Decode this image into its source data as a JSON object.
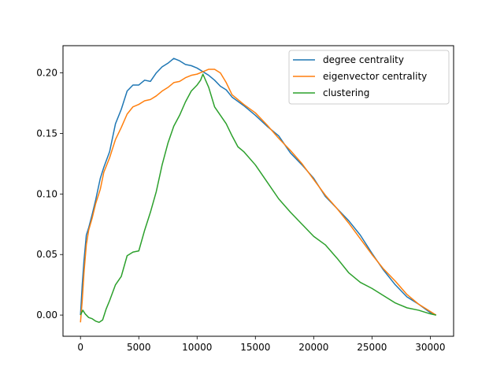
{
  "chart_data": {
    "type": "line",
    "title": "",
    "xlabel": "",
    "ylabel": "",
    "xlim": [
      -1500,
      32000
    ],
    "ylim": [
      -0.0175,
      0.2225
    ],
    "xticks": [
      0,
      5000,
      10000,
      15000,
      20000,
      25000,
      30000
    ],
    "xtick_labels": [
      "0",
      "5000",
      "10000",
      "15000",
      "20000",
      "25000",
      "30000"
    ],
    "yticks": [
      0.0,
      0.05,
      0.1,
      0.15,
      0.2
    ],
    "ytick_labels": [
      "0.00",
      "0.05",
      "0.10",
      "0.15",
      "0.20"
    ],
    "grid": false,
    "legend_position": "top-right",
    "series": [
      {
        "name": "degree centrality",
        "color": "#1f77b4",
        "x": [
          0,
          150,
          300,
          500,
          700,
          1000,
          1300,
          1700,
          2000,
          2500,
          3000,
          3500,
          4000,
          4500,
          5000,
          5500,
          6000,
          6500,
          7000,
          7500,
          8000,
          8500,
          9000,
          9500,
          10000,
          10500,
          11000,
          11500,
          12000,
          12500,
          13000,
          14000,
          15000,
          16000,
          17000,
          18000,
          19000,
          20000,
          21000,
          22000,
          23000,
          24000,
          25000,
          26000,
          27000,
          28000,
          29000,
          30000,
          30500
        ],
        "y": [
          0.0,
          0.025,
          0.045,
          0.066,
          0.072,
          0.083,
          0.095,
          0.113,
          0.122,
          0.135,
          0.158,
          0.17,
          0.185,
          0.19,
          0.19,
          0.194,
          0.193,
          0.2,
          0.205,
          0.208,
          0.212,
          0.21,
          0.207,
          0.206,
          0.204,
          0.201,
          0.198,
          0.194,
          0.189,
          0.186,
          0.18,
          0.173,
          0.165,
          0.156,
          0.148,
          0.134,
          0.124,
          0.113,
          0.098,
          0.088,
          0.078,
          0.066,
          0.051,
          0.037,
          0.025,
          0.015,
          0.009,
          0.002,
          0.0
        ]
      },
      {
        "name": "eigenvector centrality",
        "color": "#ff7f0e",
        "x": [
          0,
          150,
          300,
          500,
          700,
          1000,
          1300,
          1700,
          2000,
          2500,
          3000,
          3500,
          4000,
          4500,
          5000,
          5500,
          6000,
          6500,
          7000,
          7500,
          8000,
          8500,
          9000,
          9500,
          10000,
          10500,
          11000,
          11500,
          12000,
          12500,
          13000,
          14000,
          15000,
          16000,
          17000,
          18000,
          19000,
          20000,
          21000,
          22000,
          23000,
          24000,
          25000,
          26000,
          27000,
          28000,
          29000,
          30000,
          30500
        ],
        "y": [
          -0.006,
          0.012,
          0.035,
          0.058,
          0.07,
          0.08,
          0.092,
          0.104,
          0.118,
          0.13,
          0.145,
          0.155,
          0.166,
          0.172,
          0.174,
          0.177,
          0.178,
          0.181,
          0.185,
          0.188,
          0.192,
          0.193,
          0.196,
          0.198,
          0.199,
          0.201,
          0.203,
          0.203,
          0.2,
          0.192,
          0.182,
          0.174,
          0.167,
          0.157,
          0.146,
          0.136,
          0.125,
          0.112,
          0.099,
          0.088,
          0.076,
          0.063,
          0.05,
          0.038,
          0.028,
          0.017,
          0.009,
          0.003,
          0.0
        ]
      },
      {
        "name": "clustering",
        "color": "#2ca02c",
        "x": [
          0,
          200,
          400,
          700,
          1000,
          1300,
          1600,
          1900,
          2200,
          2500,
          3000,
          3500,
          4000,
          4500,
          5000,
          5500,
          6000,
          6500,
          7000,
          7500,
          8000,
          8500,
          9000,
          9500,
          10000,
          10300,
          10500,
          11000,
          11500,
          12000,
          12500,
          13000,
          13500,
          14000,
          15000,
          16000,
          17000,
          18000,
          19000,
          20000,
          21000,
          22000,
          23000,
          24000,
          25000,
          26000,
          27000,
          28000,
          29000,
          30000,
          30500
        ],
        "y": [
          0.0,
          0.004,
          0.001,
          -0.002,
          -0.003,
          -0.005,
          -0.006,
          -0.004,
          0.005,
          0.012,
          0.025,
          0.032,
          0.049,
          0.052,
          0.053,
          0.07,
          0.085,
          0.102,
          0.124,
          0.142,
          0.156,
          0.165,
          0.176,
          0.185,
          0.19,
          0.194,
          0.199,
          0.188,
          0.172,
          0.165,
          0.158,
          0.148,
          0.139,
          0.135,
          0.124,
          0.11,
          0.096,
          0.085,
          0.075,
          0.065,
          0.058,
          0.047,
          0.035,
          0.027,
          0.022,
          0.016,
          0.01,
          0.006,
          0.004,
          0.001,
          0.0
        ]
      }
    ]
  }
}
